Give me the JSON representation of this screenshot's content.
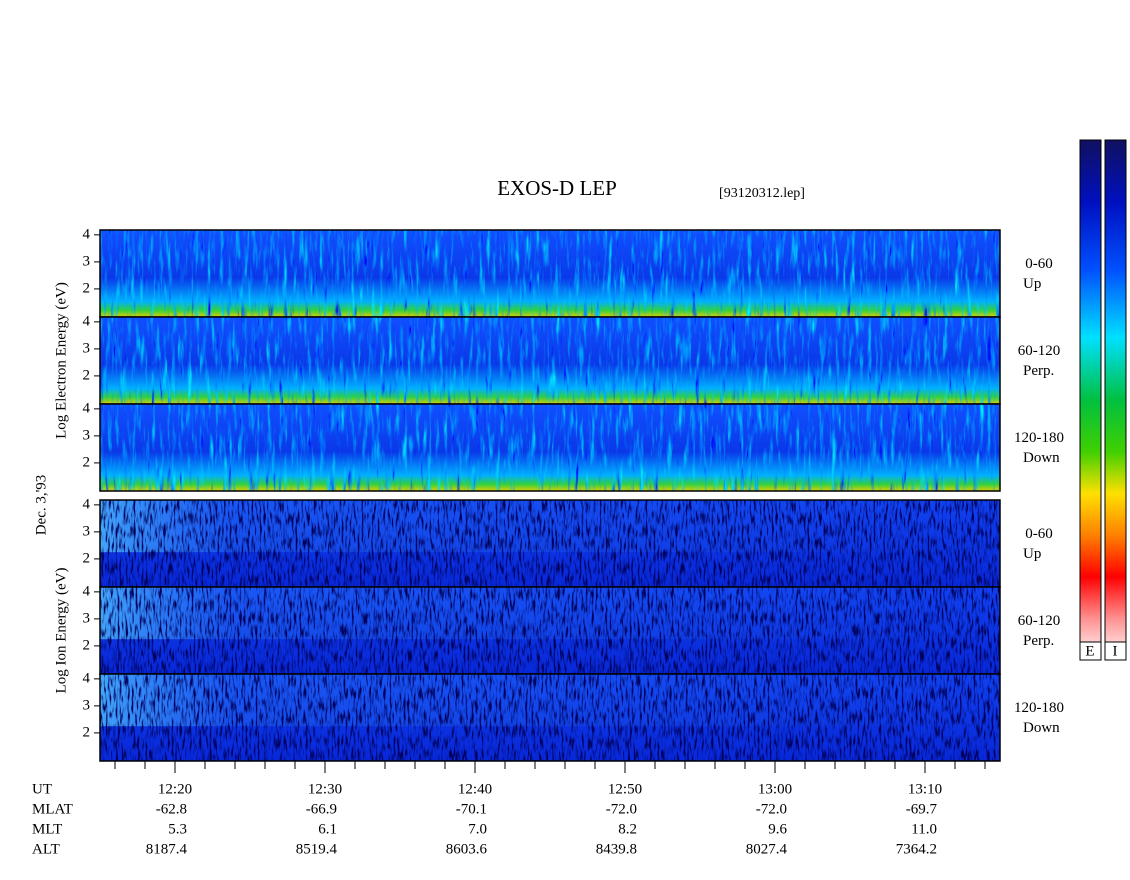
{
  "header": {
    "title": "EXOS-D LEP",
    "file": "[93120312.lep]"
  },
  "date": "Dec. 3,'93",
  "groups": [
    {
      "label": "Log Electron Energy (eV)",
      "panels": [
        {
          "range": "0-60",
          "direction": "Up"
        },
        {
          "range": "60-120",
          "direction": "Perp."
        },
        {
          "range": "120-180",
          "direction": "Down"
        }
      ]
    },
    {
      "label": "Log Ion Energy (eV)",
      "panels": [
        {
          "range": "0-60",
          "direction": "Up"
        },
        {
          "range": "60-120",
          "direction": "Perp."
        },
        {
          "range": "120-180",
          "direction": "Down"
        }
      ]
    }
  ],
  "ylim": [
    0.96,
    4.18
  ],
  "yticks": [
    2,
    3,
    4
  ],
  "footer": {
    "rows": [
      {
        "name": "UT",
        "values": [
          "12:20",
          "12:30",
          "12:40",
          "12:50",
          "13:00",
          "13:10"
        ]
      },
      {
        "name": "MLAT",
        "values": [
          "-62.8",
          "-66.9",
          "-70.1",
          "-72.0",
          "-72.0",
          "-69.7"
        ]
      },
      {
        "name": "MLT",
        "values": [
          "5.3",
          "6.1",
          "7.0",
          "8.2",
          "9.6",
          "11.0"
        ]
      },
      {
        "name": "ALT",
        "values": [
          "8187.4",
          "8519.4",
          "8603.6",
          "8439.8",
          "8027.4",
          "7364.2"
        ]
      }
    ]
  },
  "colorbars": [
    "E",
    "I"
  ]
}
